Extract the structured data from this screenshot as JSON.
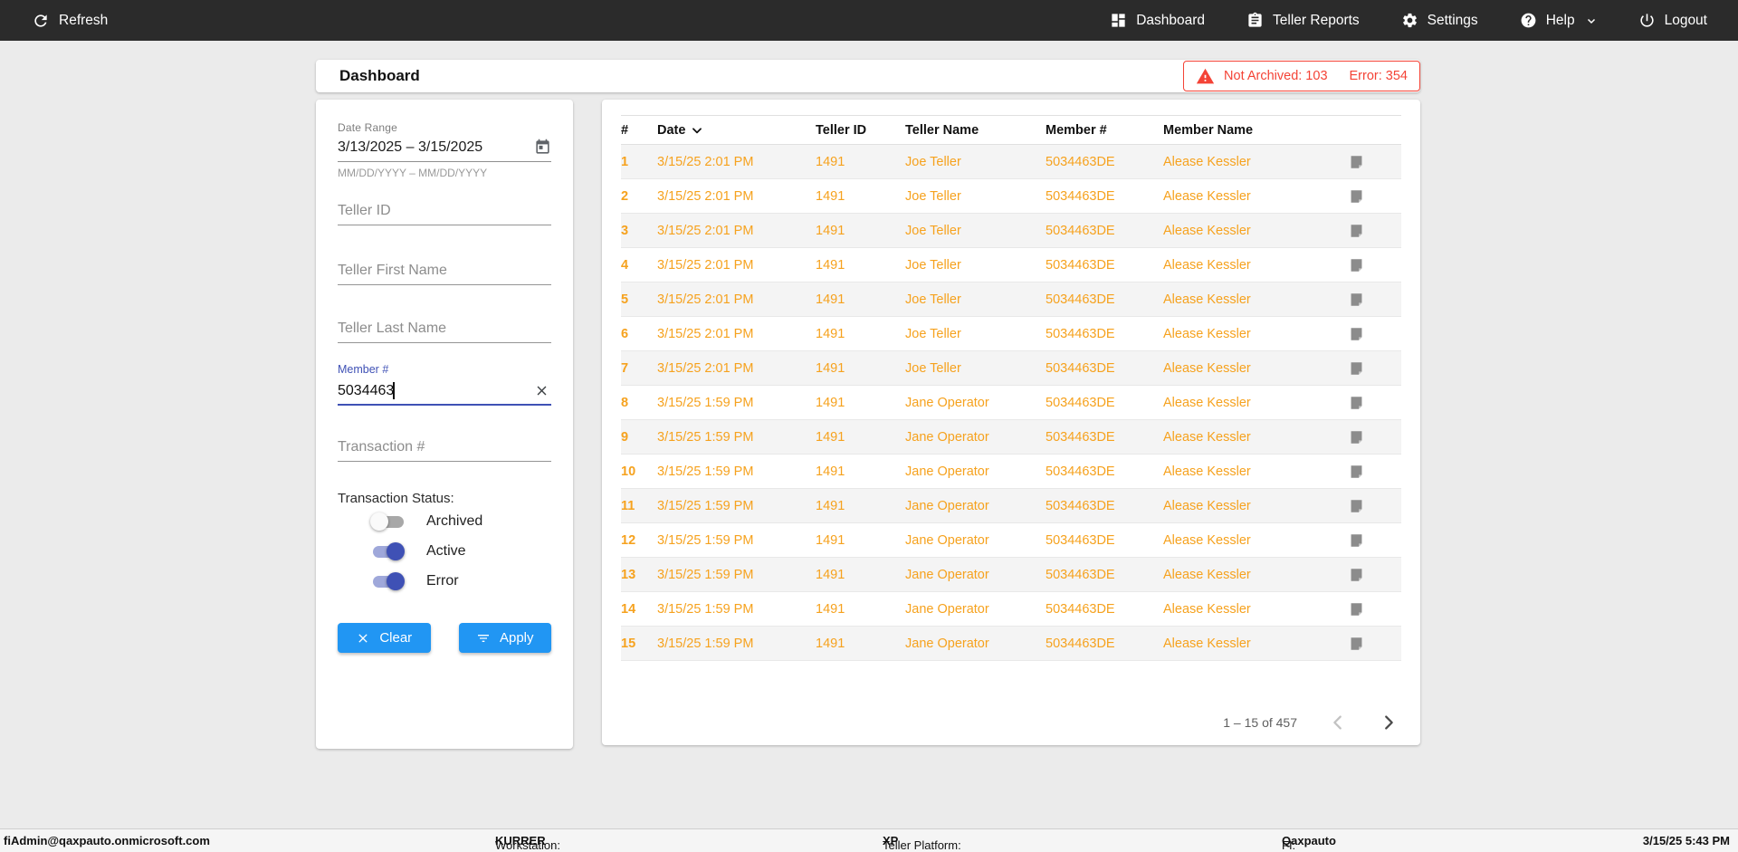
{
  "nav": {
    "refresh_label": "Refresh",
    "items": [
      {
        "label": "Dashboard",
        "icon": "dashboard-icon"
      },
      {
        "label": "Teller Reports",
        "icon": "clipboard-icon"
      },
      {
        "label": "Settings",
        "icon": "gear-icon"
      },
      {
        "label": "Help",
        "icon": "help-icon"
      },
      {
        "label": "Logout",
        "icon": "power-icon"
      }
    ]
  },
  "header": {
    "title": "Dashboard",
    "alert": {
      "not_archived": "Not Archived: 103",
      "error": "Error: 354"
    }
  },
  "filters": {
    "date_range": {
      "label": "Date Range",
      "value": "3/13/2025 – 3/15/2025",
      "helper": "MM/DD/YYYY – MM/DD/YYYY"
    },
    "teller_id": {
      "placeholder": "Teller ID"
    },
    "teller_first_name": {
      "placeholder": "Teller First Name"
    },
    "teller_last_name": {
      "placeholder": "Teller Last Name"
    },
    "member_number": {
      "label": "Member #",
      "value": "5034463"
    },
    "transaction_number": {
      "placeholder": "Transaction #"
    },
    "status": {
      "label": "Transaction Status:",
      "toggles": [
        {
          "label": "Archived",
          "on": false
        },
        {
          "label": "Active",
          "on": true
        },
        {
          "label": "Error",
          "on": true
        }
      ]
    },
    "clear_label": "Clear",
    "apply_label": "Apply"
  },
  "table": {
    "columns": [
      "#",
      "Date",
      "Teller ID",
      "Teller Name",
      "Member #",
      "Member Name"
    ],
    "sort_column": "Date",
    "rows": [
      {
        "num": "1",
        "date": "3/15/25 2:01 PM",
        "teller_id": "1491",
        "teller_name": "Joe Teller",
        "member_number": "5034463DE",
        "member_name": "Alease Kessler"
      },
      {
        "num": "2",
        "date": "3/15/25 2:01 PM",
        "teller_id": "1491",
        "teller_name": "Joe Teller",
        "member_number": "5034463DE",
        "member_name": "Alease Kessler"
      },
      {
        "num": "3",
        "date": "3/15/25 2:01 PM",
        "teller_id": "1491",
        "teller_name": "Joe Teller",
        "member_number": "5034463DE",
        "member_name": "Alease Kessler"
      },
      {
        "num": "4",
        "date": "3/15/25 2:01 PM",
        "teller_id": "1491",
        "teller_name": "Joe Teller",
        "member_number": "5034463DE",
        "member_name": "Alease Kessler"
      },
      {
        "num": "5",
        "date": "3/15/25 2:01 PM",
        "teller_id": "1491",
        "teller_name": "Joe Teller",
        "member_number": "5034463DE",
        "member_name": "Alease Kessler"
      },
      {
        "num": "6",
        "date": "3/15/25 2:01 PM",
        "teller_id": "1491",
        "teller_name": "Joe Teller",
        "member_number": "5034463DE",
        "member_name": "Alease Kessler"
      },
      {
        "num": "7",
        "date": "3/15/25 2:01 PM",
        "teller_id": "1491",
        "teller_name": "Joe Teller",
        "member_number": "5034463DE",
        "member_name": "Alease Kessler"
      },
      {
        "num": "8",
        "date": "3/15/25 1:59 PM",
        "teller_id": "1491",
        "teller_name": "Jane Operator",
        "member_number": "5034463DE",
        "member_name": "Alease Kessler"
      },
      {
        "num": "9",
        "date": "3/15/25 1:59 PM",
        "teller_id": "1491",
        "teller_name": "Jane Operator",
        "member_number": "5034463DE",
        "member_name": "Alease Kessler"
      },
      {
        "num": "10",
        "date": "3/15/25 1:59 PM",
        "teller_id": "1491",
        "teller_name": "Jane Operator",
        "member_number": "5034463DE",
        "member_name": "Alease Kessler"
      },
      {
        "num": "11",
        "date": "3/15/25 1:59 PM",
        "teller_id": "1491",
        "teller_name": "Jane Operator",
        "member_number": "5034463DE",
        "member_name": "Alease Kessler"
      },
      {
        "num": "12",
        "date": "3/15/25 1:59 PM",
        "teller_id": "1491",
        "teller_name": "Jane Operator",
        "member_number": "5034463DE",
        "member_name": "Alease Kessler"
      },
      {
        "num": "13",
        "date": "3/15/25 1:59 PM",
        "teller_id": "1491",
        "teller_name": "Jane Operator",
        "member_number": "5034463DE",
        "member_name": "Alease Kessler"
      },
      {
        "num": "14",
        "date": "3/15/25 1:59 PM",
        "teller_id": "1491",
        "teller_name": "Jane Operator",
        "member_number": "5034463DE",
        "member_name": "Alease Kessler"
      },
      {
        "num": "15",
        "date": "3/15/25 1:59 PM",
        "teller_id": "1491",
        "teller_name": "Jane Operator",
        "member_number": "5034463DE",
        "member_name": "Alease Kessler"
      }
    ],
    "pagination": {
      "range": "1 – 15 of 457"
    }
  },
  "footer": {
    "user": "fiAdmin@qaxpauto.onmicrosoft.com",
    "workstation_label": "Workstation:",
    "workstation": "KURRER",
    "platform_label": "Teller Platform:",
    "platform": "XP",
    "fi_label": "FI:",
    "fi": "Qaxpauto",
    "datetime": "3/15/25 5:43 PM"
  },
  "colors": {
    "nav_bg": "#2b2b2b",
    "accent_blue": "#2196f3",
    "primary_indigo": "#3f51b5",
    "row_orange": "#f6a21e",
    "alert_red": "#f44336"
  }
}
